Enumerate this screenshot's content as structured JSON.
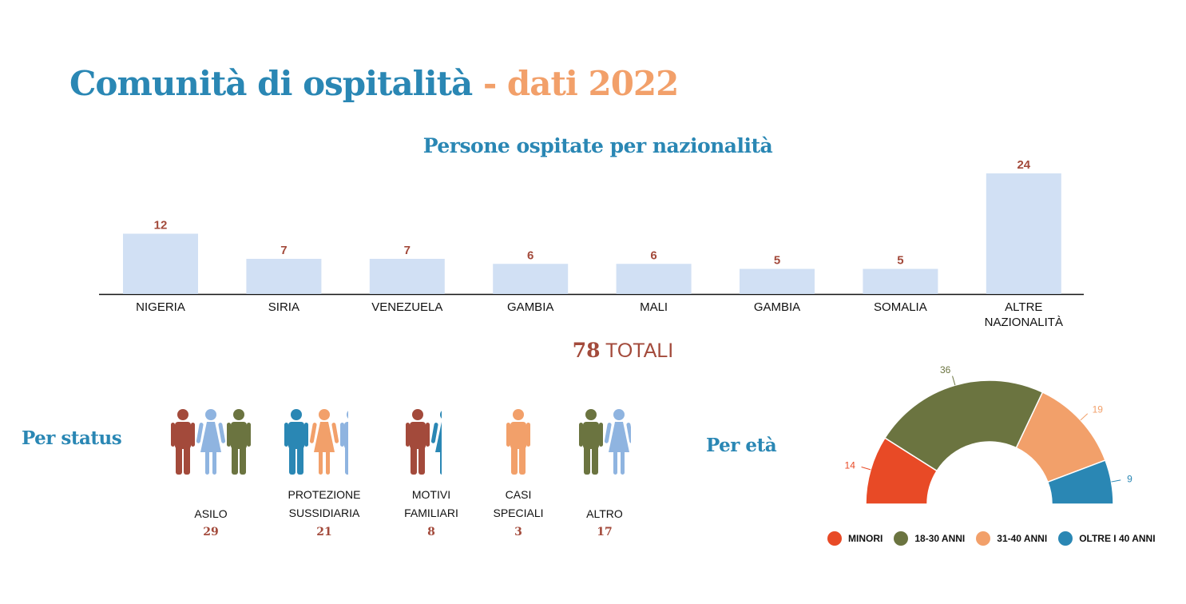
{
  "title": {
    "part1": "Comunità di ospitalità",
    "separator": " - ",
    "part2": "dati 2022"
  },
  "colors": {
    "blue": "#2a87b4",
    "orange": "#f2a06a",
    "red_brown": "#a34a3b",
    "green": "#6b7440",
    "light_blue": "#8fb4e0",
    "bar": "#d1e0f4",
    "red": "#e84a26"
  },
  "chart_data": [
    {
      "type": "bar",
      "title": "Persone ospitate per nazionalità",
      "categories": [
        "NIGERIA",
        "SIRIA",
        "VENEZUELA",
        "GAMBIA",
        "MALI",
        "GAMBIA",
        "SOMALIA",
        "ALTRE NAZIONALITÀ"
      ],
      "values": [
        12,
        7,
        7,
        6,
        6,
        5,
        5,
        24
      ],
      "xlabel": "",
      "ylabel": ""
    },
    {
      "type": "pie",
      "title": "Per età",
      "categories": [
        "MINORI",
        "18-30 ANNI",
        "31-40 ANNI",
        "OLTRE I 40 ANNI"
      ],
      "values": [
        14,
        36,
        19,
        9
      ],
      "colors": [
        "#e84a26",
        "#6b7440",
        "#f2a06a",
        "#2a87b4"
      ],
      "legend": "bottom"
    }
  ],
  "total": {
    "number": "78",
    "label": " TOTALI"
  },
  "status": {
    "title": "Per status",
    "groups": [
      {
        "name": "ASILO",
        "value": "29",
        "figures": [
          [
            "m",
            "#a34a3b"
          ],
          [
            "f",
            "#8fb4e0"
          ],
          [
            "m",
            "#6b7440"
          ]
        ],
        "clip": 0
      },
      {
        "name": "PROTEZIONE\nSUSSIDIARIA",
        "value": "21",
        "figures": [
          [
            "m",
            "#2a87b4"
          ],
          [
            "f",
            "#f2a06a"
          ],
          [
            "m",
            "#8fb4e0"
          ]
        ],
        "clip": 1
      },
      {
        "name": "MOTIVI\nFAMILIARI",
        "value": "8",
        "figures": [
          [
            "m",
            "#a34a3b"
          ],
          [
            "f",
            "#2a87b4"
          ]
        ],
        "clip": 1
      },
      {
        "name": "CASI\nSPECIALI",
        "value": "3",
        "figures": [
          [
            "m",
            "#f2a06a"
          ]
        ],
        "clip": 0
      },
      {
        "name": "ALTRO",
        "value": "17",
        "figures": [
          [
            "m",
            "#6b7440"
          ],
          [
            "f",
            "#8fb4e0"
          ]
        ],
        "clip": 0
      }
    ]
  }
}
